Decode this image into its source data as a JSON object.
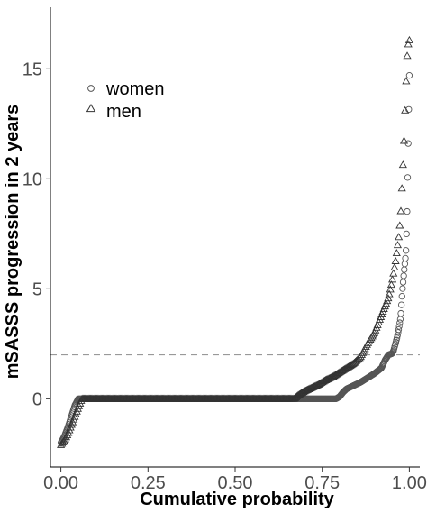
{
  "chart_data": {
    "type": "scatter",
    "title": "",
    "xlabel": "Cumulative probability",
    "ylabel": "mSASSS progression in 2 years",
    "xlim": [
      -0.03,
      1.03
    ],
    "ylim": [
      -3.1,
      17.8
    ],
    "x_ticks": [
      {
        "value": 0.0,
        "label": "0.00"
      },
      {
        "value": 0.25,
        "label": "0.25"
      },
      {
        "value": 0.5,
        "label": "0.50"
      },
      {
        "value": 0.75,
        "label": "0.75"
      },
      {
        "value": 1.0,
        "label": "1.00"
      }
    ],
    "y_ticks": [
      {
        "value": 0,
        "label": "0"
      },
      {
        "value": 5,
        "label": "5"
      },
      {
        "value": 10,
        "label": "10"
      },
      {
        "value": 15,
        "label": "15"
      }
    ],
    "grid": false,
    "legend_position": "top-left",
    "reference_line": {
      "orientation": "horizontal",
      "y": 2,
      "style": "dashed",
      "color": "#999999"
    },
    "series": [
      {
        "name": "women",
        "marker": "circle",
        "stroke_color": "#555555",
        "quantile_curve": [
          [
            0.0,
            -2.0
          ],
          [
            0.01,
            -1.7
          ],
          [
            0.02,
            -1.3
          ],
          [
            0.03,
            -0.8
          ],
          [
            0.04,
            -0.3
          ],
          [
            0.05,
            0.0
          ],
          [
            0.79,
            0.0
          ],
          [
            0.8,
            0.1
          ],
          [
            0.81,
            0.3
          ],
          [
            0.82,
            0.45
          ],
          [
            0.84,
            0.6
          ],
          [
            0.86,
            0.75
          ],
          [
            0.88,
            0.95
          ],
          [
            0.9,
            1.15
          ],
          [
            0.92,
            1.4
          ],
          [
            0.93,
            1.75
          ],
          [
            0.94,
            2.0
          ],
          [
            0.95,
            2.05
          ],
          [
            0.955,
            2.2
          ],
          [
            0.96,
            2.5
          ],
          [
            0.965,
            2.8
          ],
          [
            0.97,
            3.2
          ],
          [
            0.975,
            3.7
          ],
          [
            0.98,
            4.9
          ],
          [
            0.985,
            5.8
          ],
          [
            0.99,
            6.6
          ],
          [
            0.993,
            8.0
          ],
          [
            1.0,
            14.7
          ]
        ],
        "n_points": 620
      },
      {
        "name": "men",
        "marker": "triangle",
        "stroke_color": "#333333",
        "quantile_curve": [
          [
            0.0,
            -2.1
          ],
          [
            0.01,
            -1.9
          ],
          [
            0.02,
            -1.6
          ],
          [
            0.03,
            -1.2
          ],
          [
            0.04,
            -0.8
          ],
          [
            0.05,
            -0.4
          ],
          [
            0.06,
            0.0
          ],
          [
            0.67,
            0.0
          ],
          [
            0.68,
            0.15
          ],
          [
            0.7,
            0.35
          ],
          [
            0.72,
            0.5
          ],
          [
            0.74,
            0.65
          ],
          [
            0.76,
            0.85
          ],
          [
            0.78,
            1.0
          ],
          [
            0.8,
            1.2
          ],
          [
            0.82,
            1.4
          ],
          [
            0.84,
            1.6
          ],
          [
            0.86,
            1.9
          ],
          [
            0.87,
            2.2
          ],
          [
            0.88,
            2.5
          ],
          [
            0.9,
            3.0
          ],
          [
            0.92,
            3.8
          ],
          [
            0.94,
            4.6
          ],
          [
            0.95,
            5.3
          ],
          [
            0.96,
            6.2
          ],
          [
            0.97,
            7.4
          ],
          [
            0.975,
            8.3
          ],
          [
            0.98,
            10.0
          ],
          [
            0.985,
            11.8
          ],
          [
            0.99,
            14.1
          ],
          [
            0.995,
            16.0
          ],
          [
            1.0,
            16.3
          ]
        ],
        "n_points": 330
      }
    ]
  }
}
